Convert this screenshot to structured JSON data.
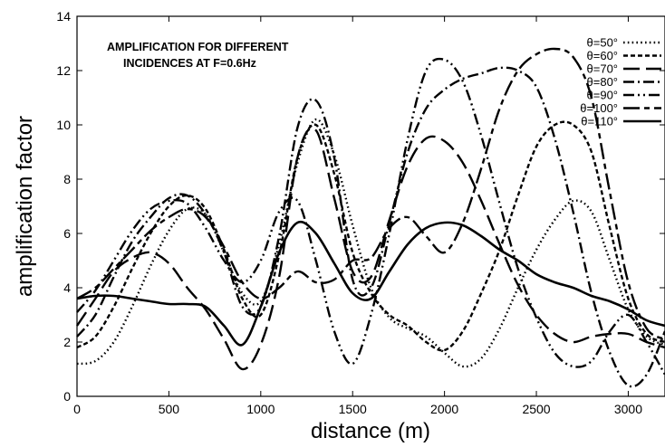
{
  "chart_data": {
    "type": "line",
    "title": "",
    "annotation": [
      "AMPLIFICATION FOR DIFFERENT",
      "INCIDENCES AT F=0.6Hz"
    ],
    "xlabel": "distance (m)",
    "ylabel": "amplification factor",
    "xlim": [
      0,
      3200
    ],
    "ylim": [
      0,
      14
    ],
    "xticks": [
      0,
      500,
      1000,
      1500,
      2000,
      2500,
      3000
    ],
    "yticks": [
      0,
      2,
      4,
      6,
      8,
      10,
      12,
      14
    ],
    "grid": false,
    "legend": "top-right",
    "series": [
      {
        "name": "θ=50°",
        "style": "dotted",
        "x": [
          0,
          100,
          200,
          300,
          400,
          500,
          600,
          700,
          800,
          900,
          1000,
          1100,
          1200,
          1300,
          1400,
          1500,
          1600,
          1700,
          1800,
          1900,
          2000,
          2100,
          2200,
          2300,
          2400,
          2500,
          2600,
          2700,
          2800,
          2900,
          3000,
          3100,
          3200
        ],
        "values": [
          1.2,
          1.3,
          2.0,
          3.3,
          4.8,
          6.1,
          6.9,
          6.7,
          5.3,
          3.8,
          3.5,
          5.6,
          8.6,
          10.2,
          8.9,
          6.3,
          4.0,
          2.9,
          2.5,
          2.2,
          1.6,
          1.1,
          1.4,
          2.5,
          4.0,
          5.4,
          6.5,
          7.2,
          6.8,
          5.0,
          3.2,
          2.2,
          1.9
        ]
      },
      {
        "name": "θ=60°",
        "style": "short-dash",
        "x": [
          0,
          100,
          200,
          300,
          400,
          500,
          600,
          700,
          800,
          900,
          1000,
          1100,
          1200,
          1300,
          1400,
          1500,
          1600,
          1700,
          1800,
          1900,
          2000,
          2100,
          2200,
          2300,
          2400,
          2500,
          2600,
          2700,
          2800,
          2900,
          3000,
          3100,
          3200
        ],
        "values": [
          1.8,
          2.2,
          3.3,
          4.7,
          6.0,
          7.0,
          7.4,
          6.9,
          5.4,
          3.6,
          3.0,
          5.2,
          8.8,
          10.0,
          8.2,
          5.3,
          3.8,
          3.0,
          2.6,
          2.0,
          1.7,
          2.4,
          3.8,
          5.4,
          7.4,
          9.2,
          10.0,
          10.0,
          9.0,
          6.2,
          3.6,
          2.3,
          2.0
        ]
      },
      {
        "name": "θ=70°",
        "style": "long-dash",
        "x": [
          0,
          100,
          200,
          300,
          400,
          500,
          600,
          700,
          800,
          900,
          1000,
          1100,
          1200,
          1300,
          1400,
          1500,
          1600,
          1700,
          1800,
          1900,
          2000,
          2100,
          2200,
          2300,
          2400,
          2500,
          2600,
          2700,
          2800,
          2900,
          3000,
          3100,
          3200
        ],
        "values": [
          2.6,
          3.6,
          4.6,
          5.1,
          5.3,
          4.9,
          4.0,
          3.2,
          2.1,
          1.0,
          1.9,
          4.4,
          8.8,
          9.8,
          7.3,
          4.6,
          4.4,
          6.5,
          8.5,
          9.5,
          9.4,
          8.6,
          7.2,
          5.6,
          4.1,
          3.0,
          2.3,
          2.0,
          2.2,
          2.3,
          2.3,
          2.0,
          1.8
        ]
      },
      {
        "name": "θ=80°",
        "style": "dash-dot",
        "x": [
          0,
          100,
          200,
          300,
          400,
          500,
          600,
          700,
          800,
          900,
          1000,
          1100,
          1200,
          1300,
          1400,
          1500,
          1600,
          1700,
          1800,
          1900,
          2000,
          2100,
          2200,
          2300,
          2400,
          2500,
          2600,
          2700,
          2800,
          2900,
          3000,
          3100,
          3200
        ],
        "values": [
          2.2,
          3.0,
          4.4,
          5.7,
          6.6,
          7.3,
          7.4,
          6.7,
          5.3,
          3.3,
          3.3,
          5.9,
          9.9,
          10.9,
          8.8,
          4.3,
          4.0,
          6.4,
          9.0,
          10.6,
          11.3,
          11.7,
          11.9,
          12.1,
          12.0,
          11.4,
          9.5,
          6.8,
          3.8,
          1.6,
          0.4,
          0.8,
          2.4
        ]
      },
      {
        "name": "θ=90°",
        "style": "dash-dot-dot",
        "x": [
          0,
          100,
          200,
          300,
          400,
          500,
          600,
          700,
          800,
          900,
          1000,
          1100,
          1200,
          1300,
          1400,
          1500,
          1600,
          1700,
          1800,
          1900,
          2000,
          2100,
          2200,
          2300,
          2400,
          2500,
          2600,
          2700,
          2800,
          2900,
          3000,
          3100,
          3200
        ],
        "values": [
          3.1,
          3.9,
          5.0,
          6.1,
          6.9,
          7.2,
          7.1,
          6.2,
          5.0,
          4.2,
          5.0,
          6.8,
          7.2,
          5.0,
          2.4,
          1.2,
          3.0,
          6.0,
          9.5,
          12.0,
          12.4,
          11.6,
          9.6,
          7.1,
          4.7,
          2.9,
          1.6,
          1.1,
          1.3,
          2.4,
          3.0,
          2.0,
          0.8
        ]
      },
      {
        "name": "θ=100°",
        "style": "dash-long-dash",
        "x": [
          0,
          100,
          200,
          300,
          400,
          500,
          600,
          700,
          800,
          900,
          1000,
          1100,
          1200,
          1300,
          1400,
          1500,
          1600,
          1700,
          1800,
          1900,
          2000,
          2100,
          2200,
          2300,
          2400,
          2500,
          2600,
          2700,
          2800,
          2900,
          3000,
          3100,
          3200
        ],
        "values": [
          3.6,
          4.0,
          4.7,
          5.4,
          6.1,
          6.6,
          6.9,
          6.6,
          5.5,
          4.2,
          3.6,
          4.0,
          4.6,
          4.2,
          4.3,
          5.0,
          5.1,
          6.2,
          6.6,
          5.9,
          5.3,
          6.4,
          8.4,
          10.6,
          12.0,
          12.6,
          12.8,
          12.5,
          11.0,
          7.5,
          4.2,
          2.5,
          2.1
        ]
      },
      {
        "name": "θ=110°",
        "style": "solid",
        "x": [
          0,
          100,
          200,
          300,
          400,
          500,
          600,
          700,
          800,
          900,
          1000,
          1100,
          1200,
          1300,
          1400,
          1500,
          1600,
          1700,
          1800,
          1900,
          2000,
          2100,
          2200,
          2300,
          2400,
          2500,
          2600,
          2700,
          2800,
          2900,
          3000,
          3100,
          3200
        ],
        "values": [
          3.6,
          3.7,
          3.7,
          3.6,
          3.5,
          3.4,
          3.4,
          3.3,
          2.6,
          1.9,
          3.3,
          5.3,
          6.4,
          6.0,
          4.9,
          3.8,
          3.6,
          4.6,
          5.6,
          6.2,
          6.4,
          6.3,
          5.9,
          5.4,
          5.0,
          4.5,
          4.2,
          4.0,
          3.7,
          3.5,
          3.2,
          2.8,
          2.6
        ]
      }
    ]
  }
}
